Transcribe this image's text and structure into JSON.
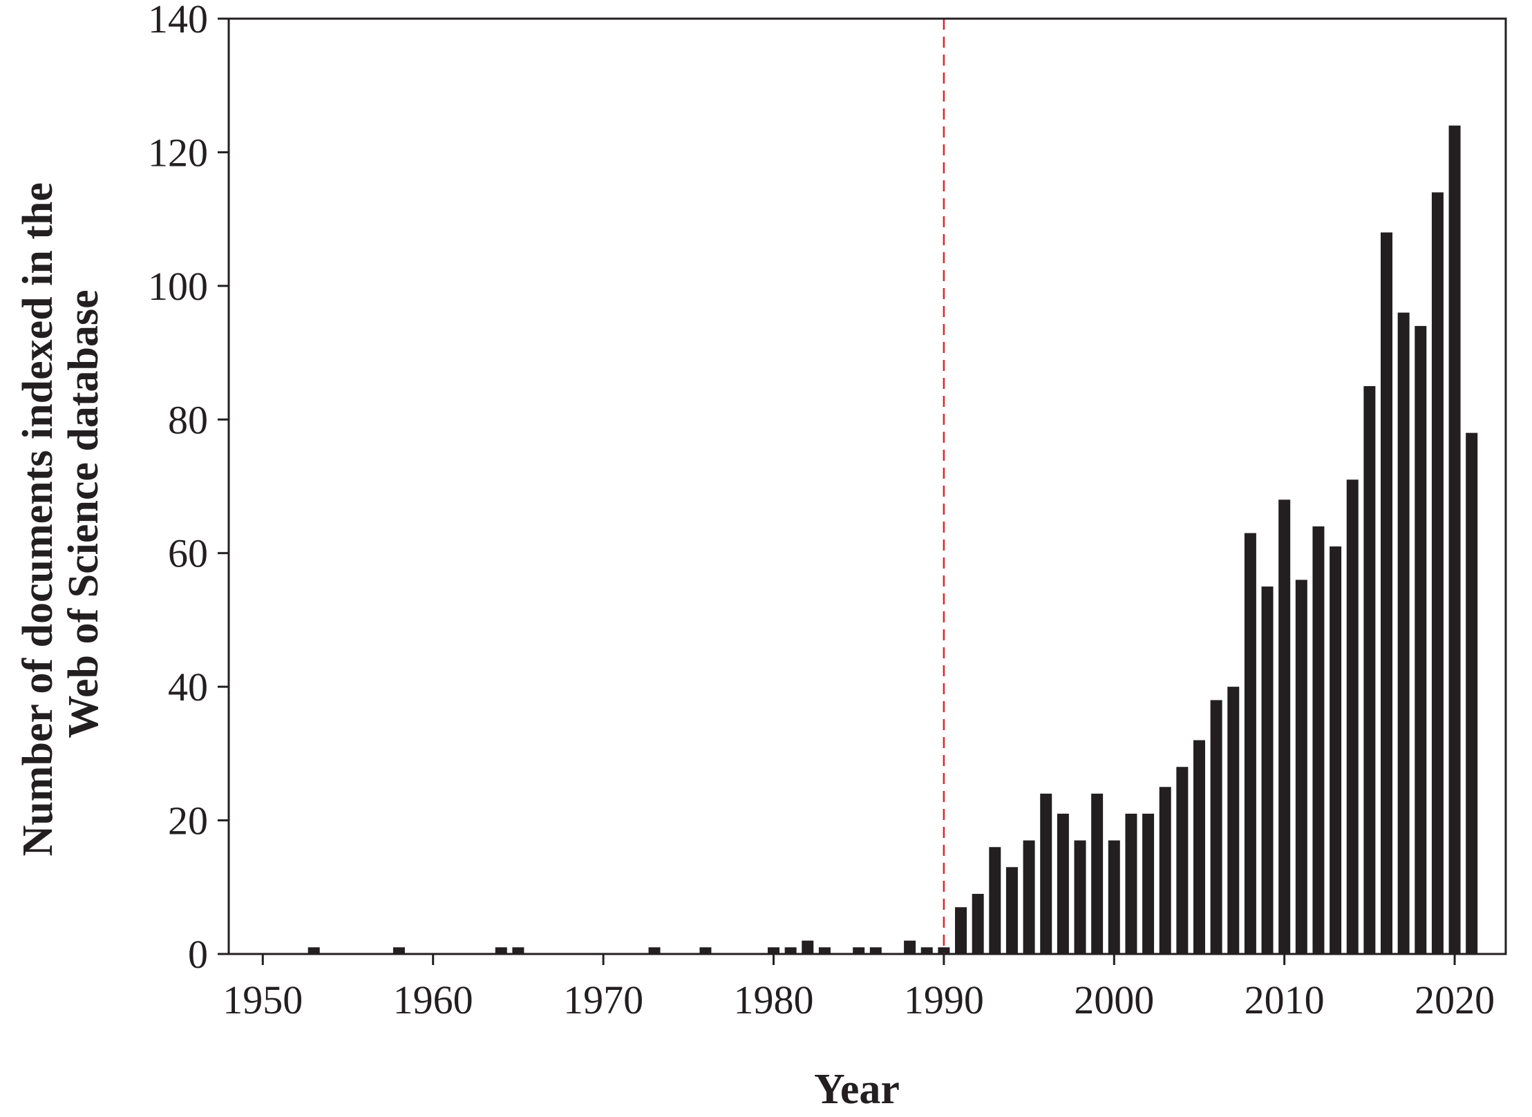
{
  "chart_data": {
    "type": "bar",
    "title": "",
    "xlabel": "Year",
    "ylabel_lines": [
      "Number of documents indexed in the",
      "Web of Science database"
    ],
    "xlim": [
      1948,
      2023
    ],
    "ylim": [
      0,
      140
    ],
    "x_ticks": [
      1950,
      1960,
      1970,
      1980,
      1990,
      2000,
      2010,
      2020
    ],
    "y_ticks": [
      0,
      20,
      40,
      60,
      80,
      100,
      120,
      140
    ],
    "grid": false,
    "legend": "none",
    "bar_color": "#231f20",
    "reference_line": {
      "x": 1990,
      "color": "#d9262b",
      "style": "dashed"
    },
    "x": [
      1953,
      1958,
      1964,
      1965,
      1973,
      1976,
      1980,
      1981,
      1982,
      1983,
      1985,
      1986,
      1988,
      1989,
      1990,
      1991,
      1992,
      1993,
      1994,
      1995,
      1996,
      1997,
      1998,
      1999,
      2000,
      2001,
      2002,
      2003,
      2004,
      2005,
      2006,
      2007,
      2008,
      2009,
      2010,
      2011,
      2012,
      2013,
      2014,
      2015,
      2016,
      2017,
      2018,
      2019,
      2020,
      2021
    ],
    "values": [
      1,
      1,
      1,
      1,
      1,
      1,
      1,
      1,
      2,
      1,
      1,
      1,
      2,
      1,
      1,
      7,
      9,
      16,
      13,
      17,
      24,
      21,
      17,
      24,
      17,
      21,
      21,
      25,
      28,
      32,
      38,
      40,
      63,
      55,
      68,
      56,
      64,
      61,
      71,
      85,
      108,
      96,
      94,
      114,
      124,
      78
    ]
  }
}
